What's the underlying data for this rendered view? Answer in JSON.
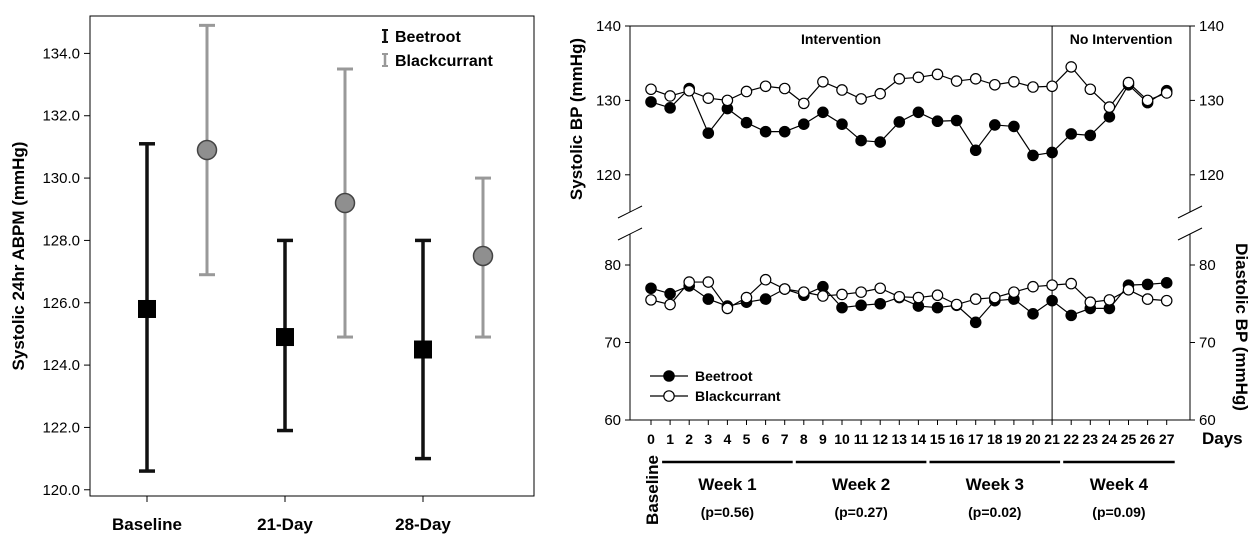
{
  "chart_data": [
    {
      "type": "errorbar",
      "ylabel": "Systolic 24hr ABPM (mmHg)",
      "ylim": [
        119.8,
        135.2
      ],
      "yticks": [
        "120.0",
        "122.0",
        "124.0",
        "126.0",
        "128.0",
        "130.0",
        "132.0",
        "134.0"
      ],
      "categories": [
        "Baseline",
        "21-Day",
        "28-Day"
      ],
      "legend_position": "top-right",
      "series": [
        {
          "name": "Beetroot",
          "color": "#111111",
          "marker": "square",
          "mean": [
            125.8,
            124.9,
            124.5
          ],
          "lower": [
            120.6,
            121.9,
            121.0
          ],
          "upper": [
            131.1,
            128.0,
            128.0
          ]
        },
        {
          "name": "Blackcurrant",
          "color": "#999999",
          "marker": "circle",
          "mean": [
            130.9,
            129.2,
            127.5
          ],
          "lower": [
            126.9,
            124.9,
            124.9
          ],
          "upper": [
            134.9,
            133.5,
            130.0
          ]
        }
      ]
    },
    {
      "type": "line",
      "xlabel": "Days",
      "x": [
        0,
        1,
        2,
        3,
        4,
        5,
        6,
        7,
        8,
        9,
        10,
        11,
        12,
        13,
        14,
        15,
        16,
        17,
        18,
        19,
        20,
        21,
        22,
        23,
        24,
        25,
        26,
        27
      ],
      "xticks": [
        "0",
        "1",
        "2",
        "3",
        "4",
        "5",
        "6",
        "7",
        "8",
        "9",
        "10",
        "11",
        "12",
        "13",
        "14",
        "15",
        "16",
        "17",
        "18",
        "19",
        "20",
        "21",
        "22",
        "23",
        "24",
        "25",
        "26",
        "27"
      ],
      "annotations": {
        "intervention": "Intervention",
        "no_intervention": "No Intervention",
        "divider_day": 21
      },
      "upper_panel": {
        "ylabel": "Systolic BP (mmHg)",
        "ylim": [
          115,
          140
        ],
        "yticks": [
          "120",
          "130",
          "140"
        ],
        "series": [
          {
            "name": "Beetroot",
            "marker": "filled-circle",
            "values": [
              129.8,
              129.0,
              131.6,
              125.6,
              128.9,
              127.0,
              125.8,
              125.8,
              126.8,
              128.4,
              126.8,
              124.6,
              124.4,
              127.1,
              128.4,
              127.2,
              127.3,
              123.3,
              126.7,
              126.5,
              122.6,
              123.0,
              125.5,
              125.3,
              127.8,
              132.1,
              129.7,
              131.3
            ]
          },
          {
            "name": "Blackcurrant",
            "marker": "open-circle",
            "values": [
              131.5,
              130.6,
              131.3,
              130.3,
              130.0,
              131.2,
              131.9,
              131.6,
              129.6,
              132.5,
              131.4,
              130.2,
              130.9,
              132.9,
              133.1,
              133.5,
              132.6,
              132.9,
              132.1,
              132.5,
              131.8,
              131.9,
              134.5,
              131.5,
              129.1,
              132.4,
              130.0,
              131.0
            ]
          }
        ]
      },
      "lower_panel": {
        "ylabel": "Diastolic BP (mmHg)",
        "ylim": [
          60,
          84
        ],
        "yticks": [
          "60",
          "70",
          "80"
        ],
        "series": [
          {
            "name": "Beetroot",
            "marker": "filled-circle",
            "values": [
              77.0,
              76.3,
              77.3,
              75.6,
              74.7,
              75.2,
              75.6,
              76.9,
              76.1,
              77.2,
              74.5,
              74.8,
              75.0,
              75.8,
              74.7,
              74.5,
              74.8,
              72.6,
              75.4,
              75.6,
              73.7,
              75.4,
              73.5,
              74.4,
              74.4,
              77.4,
              77.5,
              77.7
            ]
          },
          {
            "name": "Blackcurrant",
            "marker": "open-circle",
            "values": [
              75.5,
              74.9,
              77.8,
              77.8,
              74.4,
              75.8,
              78.1,
              76.9,
              76.5,
              76.0,
              76.2,
              76.5,
              77.0,
              75.9,
              75.8,
              76.1,
              74.9,
              75.6,
              75.8,
              76.5,
              77.2,
              77.4,
              77.6,
              75.2,
              75.5,
              76.8,
              75.6,
              75.4
            ]
          }
        ]
      },
      "legend_position": "bottom-left",
      "baseline_label": "Baseline",
      "weeks": [
        {
          "label": "Week 1",
          "p": "(p=0.56)",
          "from": 1,
          "to": 7
        },
        {
          "label": "Week 2",
          "p": "(p=0.27)",
          "from": 8,
          "to": 14
        },
        {
          "label": "Week 3",
          "p": "(p=0.02)",
          "from": 15,
          "to": 21
        },
        {
          "label": "Week 4",
          "p": "(p=0.09)",
          "from": 22,
          "to": 27
        }
      ]
    }
  ]
}
